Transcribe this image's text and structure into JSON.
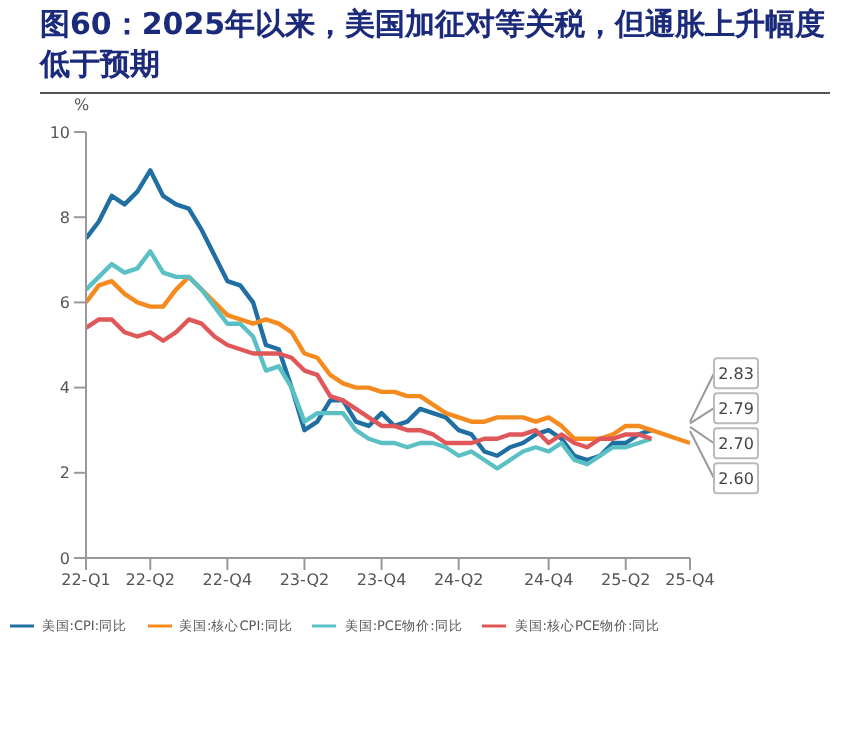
{
  "chart_data": {
    "type": "line",
    "title": "图60：2025年以来，美国加征对等关税，但通胀上升幅度低于预期",
    "ylabel": "%",
    "categories": [
      "22-Q1",
      null,
      null,
      null,
      null,
      "22-Q2",
      null,
      null,
      null,
      null,
      null,
      "22-Q4",
      null,
      null,
      null,
      null,
      null,
      "23-Q2",
      null,
      null,
      null,
      null,
      null,
      "23-Q4",
      null,
      null,
      null,
      null,
      null,
      "24-Q2",
      null,
      null,
      null,
      null,
      null,
      null,
      "24-Q4",
      null,
      null,
      null,
      null,
      null,
      "25-Q2",
      null,
      null,
      null,
      null,
      "25-Q4"
    ],
    "series": [
      {
        "name": "美国:CPI:同比",
        "color": "#1f6fa3",
        "values": [
          7.5,
          7.9,
          8.5,
          8.3,
          8.6,
          9.1,
          8.5,
          8.3,
          8.2,
          7.7,
          7.1,
          6.5,
          6.4,
          6.0,
          5.0,
          4.9,
          4.0,
          3.0,
          3.2,
          3.7,
          3.7,
          3.2,
          3.1,
          3.4,
          3.1,
          3.2,
          3.5,
          3.4,
          3.3,
          3.0,
          2.9,
          2.5,
          2.4,
          2.6,
          2.7,
          2.9,
          3.0,
          2.8,
          2.4,
          2.3,
          2.4,
          2.7,
          2.7,
          2.9,
          3.0,
          null,
          null,
          null
        ]
      },
      {
        "name": "美国:核心CPI:同比",
        "color": "#f58a1f",
        "values": [
          6.0,
          6.4,
          6.5,
          6.2,
          6.0,
          5.9,
          5.9,
          6.3,
          6.6,
          6.3,
          6.0,
          5.7,
          5.6,
          5.5,
          5.6,
          5.5,
          5.3,
          4.8,
          4.7,
          4.3,
          4.1,
          4.0,
          4.0,
          3.9,
          3.9,
          3.8,
          3.8,
          3.6,
          3.4,
          3.3,
          3.2,
          3.2,
          3.3,
          3.3,
          3.3,
          3.2,
          3.3,
          3.1,
          2.8,
          2.8,
          2.8,
          2.9,
          3.1,
          3.1,
          3.0,
          2.9,
          2.8,
          2.7
        ]
      },
      {
        "name": "美国:PCE物价:同比",
        "color": "#5bc0c4",
        "values": [
          6.3,
          6.6,
          6.9,
          6.7,
          6.8,
          7.2,
          6.7,
          6.6,
          6.6,
          6.3,
          5.9,
          5.5,
          5.5,
          5.2,
          4.4,
          4.5,
          4.0,
          3.2,
          3.4,
          3.4,
          3.4,
          3.0,
          2.8,
          2.7,
          2.7,
          2.6,
          2.7,
          2.7,
          2.6,
          2.4,
          2.5,
          2.3,
          2.1,
          2.3,
          2.5,
          2.6,
          2.5,
          2.7,
          2.3,
          2.2,
          2.4,
          2.6,
          2.6,
          2.7,
          2.8,
          null,
          null,
          null
        ]
      },
      {
        "name": "美国:核心PCE物价:同比",
        "color": "#e0575a",
        "values": [
          5.4,
          5.6,
          5.6,
          5.3,
          5.2,
          5.3,
          5.1,
          5.3,
          5.6,
          5.5,
          5.2,
          5.0,
          4.9,
          4.8,
          4.8,
          4.8,
          4.7,
          4.4,
          4.3,
          3.8,
          3.7,
          3.5,
          3.3,
          3.1,
          3.1,
          3.0,
          3.0,
          2.9,
          2.7,
          2.7,
          2.7,
          2.8,
          2.8,
          2.9,
          2.9,
          3.0,
          2.7,
          2.9,
          2.7,
          2.6,
          2.8,
          2.8,
          2.9,
          2.9,
          2.8,
          null,
          null,
          null
        ]
      }
    ],
    "annotations": [
      {
        "text": "2.83",
        "x": "25-Q4",
        "y": 2.83
      },
      {
        "text": "2.79",
        "x": "25-Q4",
        "y": 2.79
      },
      {
        "text": "2.70",
        "x": "25-Q4",
        "y": 2.7
      },
      {
        "text": "2.60",
        "x": "25-Q4",
        "y": 2.6
      }
    ],
    "ylim": [
      0,
      10
    ],
    "yticks": [
      0,
      2,
      4,
      6,
      8,
      10
    ],
    "legend": "bottom"
  }
}
